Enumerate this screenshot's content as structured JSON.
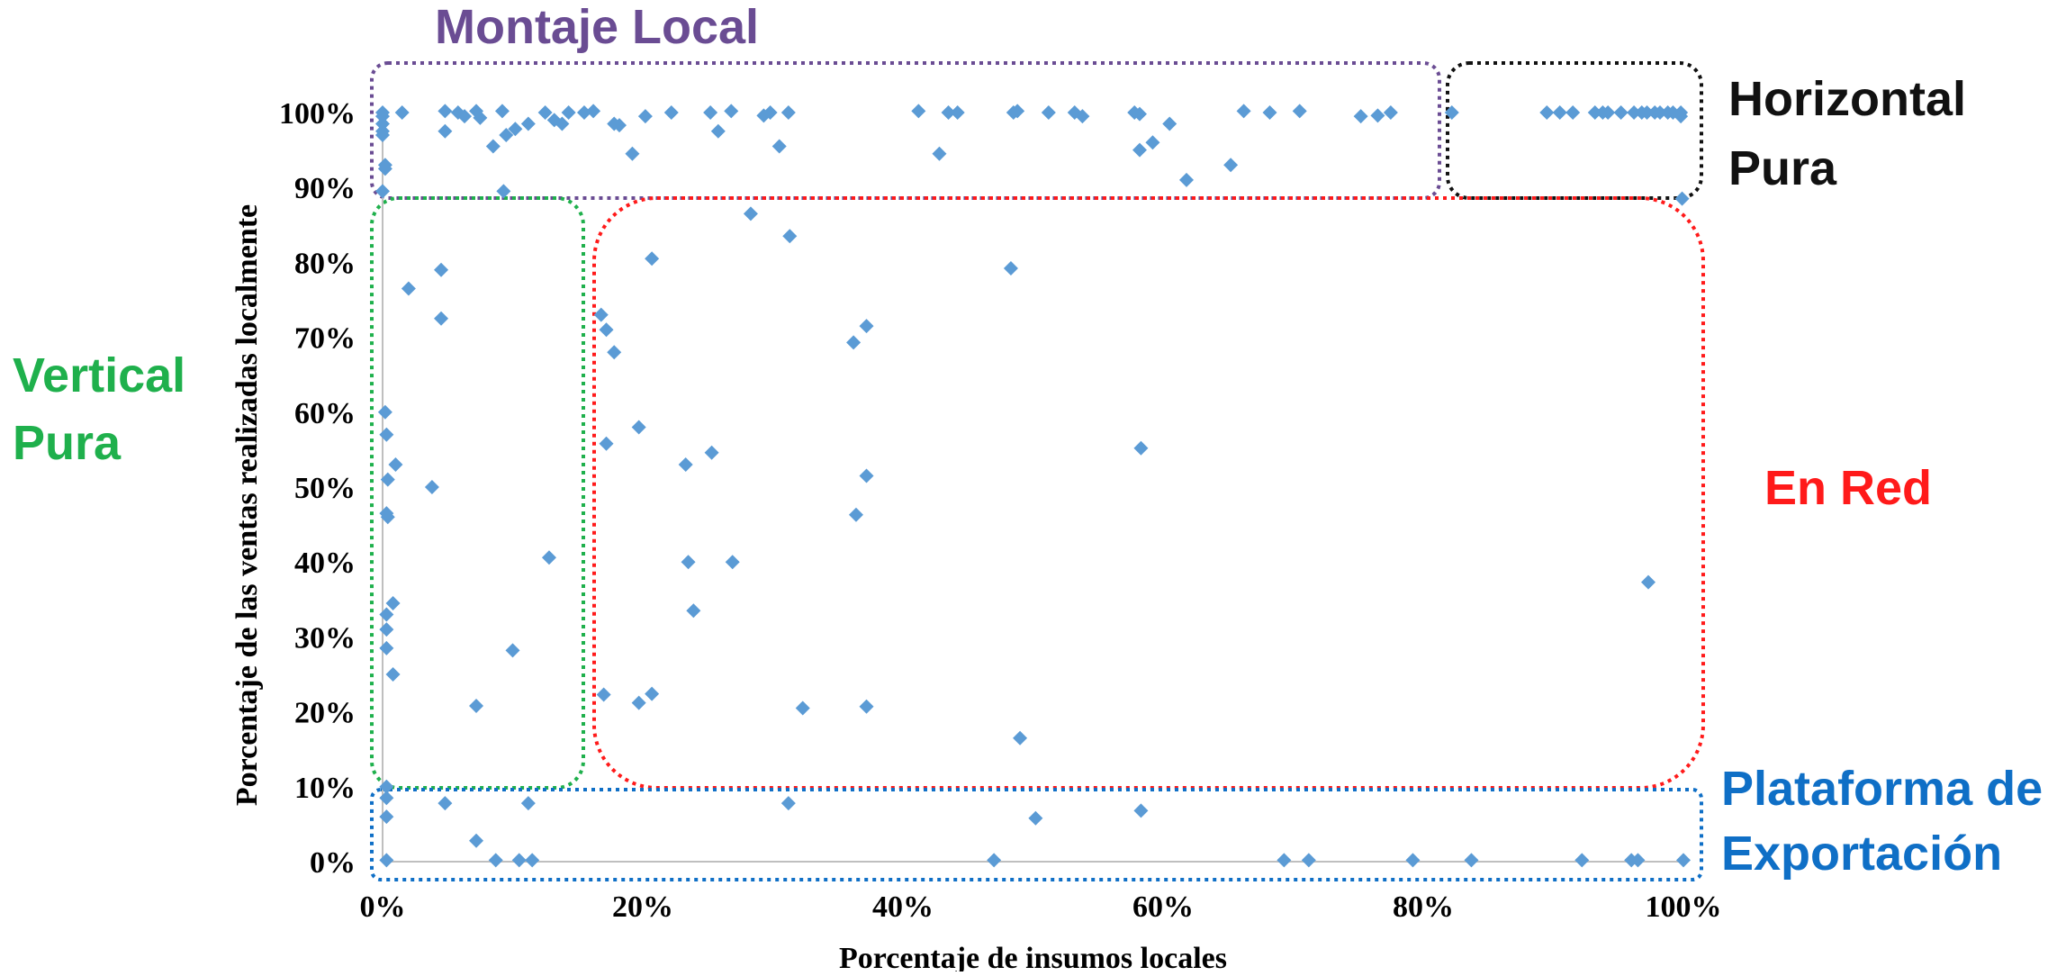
{
  "chart_data": {
    "type": "scatter",
    "xlabel": "Porcentaje de insumos locales",
    "ylabel": "Porcentaje de las ventas realizadas localmente",
    "xlim": [
      0,
      100
    ],
    "ylim": [
      0,
      100
    ],
    "x_ticks": [
      "0%",
      "20%",
      "40%",
      "60%",
      "80%",
      "100%"
    ],
    "y_ticks": [
      "0%",
      "10%",
      "20%",
      "30%",
      "40%",
      "50%",
      "60%",
      "70%",
      "80%",
      "90%",
      "100%"
    ],
    "grid": false,
    "marker_color": "#5b9bd5",
    "regions": [
      {
        "label": "Montaje Local",
        "color": "#6a4c93",
        "x": [
          0,
          82
        ],
        "y": [
          89,
          106
        ]
      },
      {
        "label": "Horizontal Pura",
        "color": "#111111",
        "x": [
          82,
          100
        ],
        "y": [
          89,
          106
        ]
      },
      {
        "label": "Vertical Pura",
        "color": "#1fb04c",
        "x": [
          0,
          15
        ],
        "y": [
          10,
          89
        ]
      },
      {
        "label": "En Red",
        "color": "#ff1a1a",
        "x": [
          16,
          100
        ],
        "y": [
          10,
          89
        ]
      },
      {
        "label": "Plataforma de Exportación",
        "color": "#0f6fc6",
        "x": [
          0,
          100
        ],
        "y": [
          -2,
          10
        ]
      }
    ],
    "points": [
      [
        0,
        100
      ],
      [
        0,
        99.5
      ],
      [
        0,
        98.5
      ],
      [
        0,
        97.5
      ],
      [
        0,
        97
      ],
      [
        0.2,
        93
      ],
      [
        0.2,
        92.5
      ],
      [
        1.5,
        100
      ],
      [
        4.8,
        97.5
      ],
      [
        4.8,
        100.2
      ],
      [
        5.8,
        100
      ],
      [
        6.3,
        99.5
      ],
      [
        7.2,
        100.2
      ],
      [
        7.5,
        99.3
      ],
      [
        8.5,
        95.5
      ],
      [
        9.2,
        100.2
      ],
      [
        9.5,
        97
      ],
      [
        10.2,
        97.8
      ],
      [
        11.2,
        98.5
      ],
      [
        12.5,
        100
      ],
      [
        13.2,
        99
      ],
      [
        13.8,
        98.5
      ],
      [
        14.3,
        100
      ],
      [
        15.5,
        100
      ],
      [
        16.2,
        100.2
      ],
      [
        17.8,
        98.5
      ],
      [
        18.2,
        98.3
      ],
      [
        19.2,
        94.5
      ],
      [
        20.2,
        99.5
      ],
      [
        22.2,
        100
      ],
      [
        25.2,
        100
      ],
      [
        25.8,
        97.5
      ],
      [
        26.8,
        100.2
      ],
      [
        29.3,
        99.6
      ],
      [
        29.8,
        100
      ],
      [
        30.5,
        95.5
      ],
      [
        31.2,
        100
      ],
      [
        41.2,
        100.2
      ],
      [
        42.8,
        94.5
      ],
      [
        43.5,
        100
      ],
      [
        44.2,
        100
      ],
      [
        48.5,
        100
      ],
      [
        48.8,
        100.2
      ],
      [
        51.2,
        100
      ],
      [
        53.2,
        100
      ],
      [
        53.8,
        99.5
      ],
      [
        57.8,
        100
      ],
      [
        58.2,
        99.8
      ],
      [
        58.2,
        95
      ],
      [
        59.2,
        96
      ],
      [
        60.5,
        98.5
      ],
      [
        61.8,
        91
      ],
      [
        65.2,
        93
      ],
      [
        66.2,
        100.2
      ],
      [
        68.2,
        100
      ],
      [
        70.5,
        100.2
      ],
      [
        75.2,
        99.5
      ],
      [
        76.5,
        99.6
      ],
      [
        77.5,
        100
      ],
      [
        82.2,
        100
      ],
      [
        89.5,
        100
      ],
      [
        90.5,
        100
      ],
      [
        91.5,
        100
      ],
      [
        93.2,
        100
      ],
      [
        93.8,
        100
      ],
      [
        94.2,
        100
      ],
      [
        95.2,
        100
      ],
      [
        96.2,
        100
      ],
      [
        96.8,
        100
      ],
      [
        97.2,
        100
      ],
      [
        97.8,
        100
      ],
      [
        98.2,
        100
      ],
      [
        98.8,
        100
      ],
      [
        99.2,
        100
      ],
      [
        99.8,
        100
      ],
      [
        99.8,
        99.5
      ],
      [
        99.9,
        88.5
      ],
      [
        0,
        89.5
      ],
      [
        2,
        76.5
      ],
      [
        1,
        53
      ],
      [
        0.2,
        60
      ],
      [
        0.3,
        57
      ],
      [
        0.4,
        51
      ],
      [
        0.3,
        46.5
      ],
      [
        0.4,
        46
      ],
      [
        0.3,
        33
      ],
      [
        0.3,
        31
      ],
      [
        0.3,
        28.5
      ],
      [
        0.8,
        25
      ],
      [
        0.8,
        34.5
      ],
      [
        3.8,
        50
      ],
      [
        4.5,
        79
      ],
      [
        4.5,
        72.5
      ],
      [
        7.2,
        20.8
      ],
      [
        9.3,
        89.5
      ],
      [
        10,
        28.2
      ],
      [
        12.8,
        40.6
      ],
      [
        16.8,
        73
      ],
      [
        17.2,
        71
      ],
      [
        17.8,
        68
      ],
      [
        17.2,
        55.8
      ],
      [
        17,
        22.3
      ],
      [
        19.7,
        58
      ],
      [
        19.7,
        21.2
      ],
      [
        20.7,
        80.5
      ],
      [
        20.7,
        22.4
      ],
      [
        23.3,
        53
      ],
      [
        23.5,
        40
      ],
      [
        23.9,
        33.5
      ],
      [
        25.3,
        54.6
      ],
      [
        26.9,
        40
      ],
      [
        28.3,
        86.5
      ],
      [
        31.3,
        83.5
      ],
      [
        32.3,
        20.5
      ],
      [
        36.2,
        69.3
      ],
      [
        36.4,
        46.3
      ],
      [
        37.2,
        71.5
      ],
      [
        37.2,
        51.5
      ],
      [
        37.2,
        20.7
      ],
      [
        48.3,
        79.2
      ],
      [
        49,
        16.5
      ],
      [
        58.3,
        55.2
      ],
      [
        97.3,
        37.3
      ],
      [
        0.3,
        10
      ],
      [
        0.3,
        8.5
      ],
      [
        0.3,
        6
      ],
      [
        0.3,
        0.2
      ],
      [
        4.8,
        7.8
      ],
      [
        7.2,
        2.8
      ],
      [
        8.7,
        0.2
      ],
      [
        10.5,
        0.2
      ],
      [
        11.2,
        7.8
      ],
      [
        11.5,
        0.2
      ],
      [
        31.2,
        7.8
      ],
      [
        47,
        0.2
      ],
      [
        50.2,
        5.8
      ],
      [
        58.3,
        6.8
      ],
      [
        69.3,
        0.2
      ],
      [
        71.2,
        0.2
      ],
      [
        79.2,
        0.2
      ],
      [
        83.7,
        0.2
      ],
      [
        92.2,
        0.2
      ],
      [
        96,
        0.2
      ],
      [
        96.5,
        0.2
      ],
      [
        100,
        0.2
      ]
    ]
  }
}
